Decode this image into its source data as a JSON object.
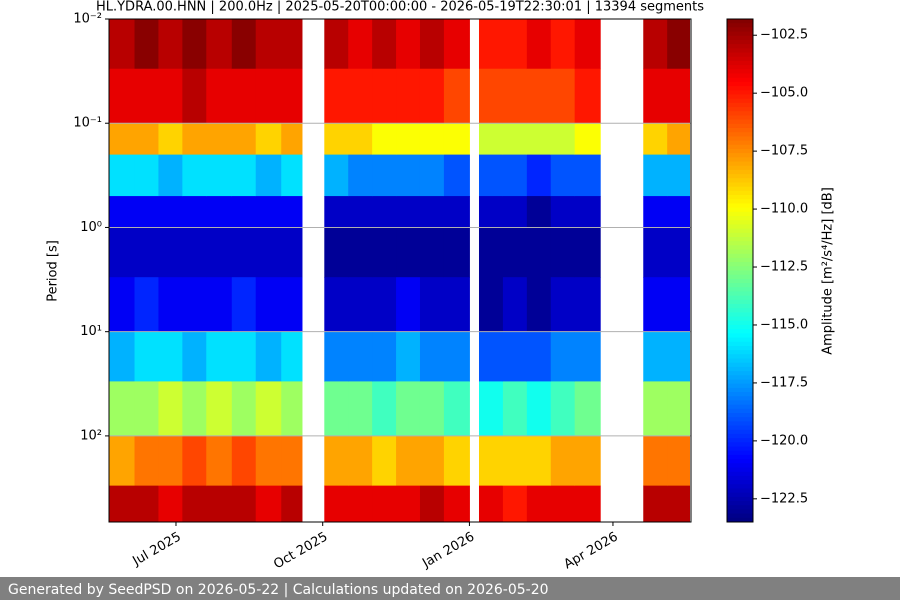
{
  "chart_data": {
    "type": "heatmap",
    "title": "HL.YDRA.00.HNN | 200.0Hz | 2025-05-20T00:00:00 - 2026-05-19T22:30:01 | 13394 segments",
    "y_label": "Period [s]",
    "colorbar_label": "Amplitude [m²/s⁴/Hz] [dB]",
    "footer": "Generated by SeedPSD on 2026-05-22 | Calculations updated on 2026-05-20",
    "colormap": "jet",
    "log_y": true,
    "y_inverted": true,
    "grid": true,
    "grid_color": "#b0b0b0",
    "x_bins": [
      "2025-05-20",
      "2025-06-05",
      "2025-06-20",
      "2025-07-05",
      "2025-07-20",
      "2025-08-05",
      "2025-08-20",
      "2025-09-05",
      "2025-09-18",
      "2025-10-02",
      "2025-10-17",
      "2025-11-01",
      "2025-11-16",
      "2025-12-01",
      "2025-12-16",
      "2026-01-01",
      "2026-01-07",
      "2026-01-22",
      "2026-02-06",
      "2026-02-21",
      "2026-03-08",
      "2026-03-24",
      "2026-04-20",
      "2026-05-05",
      "2026-05-19"
    ],
    "y_bins": [
      0.01,
      0.03,
      0.1,
      0.2,
      0.5,
      1,
      3,
      10,
      30,
      100,
      300,
      670
    ],
    "values": [
      [
        -103,
        -104,
        -108,
        -116,
        -121,
        -122,
        -121,
        -117,
        -112,
        -108,
        -103
      ],
      [
        -102,
        -104,
        -108,
        -116,
        -121,
        -122,
        -120,
        -116,
        -112,
        -107,
        -103
      ],
      [
        -103,
        -104,
        -109,
        -117,
        -121,
        -122,
        -121,
        -116,
        -111,
        -107,
        -104
      ],
      [
        -102,
        -103,
        -108,
        -116,
        -121,
        -122,
        -121,
        -117,
        -112,
        -106,
        -103
      ],
      [
        -103,
        -104,
        -108,
        -116,
        -121,
        -122,
        -121,
        -116,
        -111,
        -107,
        -103
      ],
      [
        -102,
        -104,
        -108,
        -116,
        -121,
        -122,
        -120,
        -116,
        -112,
        -106,
        -103
      ],
      [
        -103,
        -104,
        -109,
        -117,
        -121,
        -122,
        -121,
        -117,
        -111,
        -107,
        -104
      ],
      [
        -103,
        -104,
        -108,
        -116,
        -121,
        -122,
        -121,
        -116,
        -112,
        -107,
        -103
      ],
      null,
      [
        -103,
        -105,
        -109,
        -117,
        -122,
        -123,
        -122,
        -118,
        -113,
        -108,
        -104
      ],
      [
        -104,
        -105,
        -109,
        -118,
        -122,
        -123,
        -122,
        -118,
        -113,
        -108,
        -104
      ],
      [
        -103,
        -105,
        -110,
        -118,
        -122,
        -123,
        -122,
        -118,
        -114,
        -109,
        -104
      ],
      [
        -104,
        -105,
        -110,
        -118,
        -122,
        -123,
        -121,
        -117,
        -113,
        -108,
        -104
      ],
      [
        -103,
        -105,
        -110,
        -118,
        -122,
        -123,
        -122,
        -118,
        -113,
        -108,
        -103
      ],
      [
        -104,
        -106,
        -110,
        -119,
        -122,
        -123,
        -122,
        -118,
        -114,
        -109,
        -104
      ],
      null,
      [
        -105,
        -106,
        -111,
        -119,
        -122,
        -123,
        -123,
        -119,
        -115,
        -109,
        -104
      ],
      [
        -105,
        -106,
        -111,
        -119,
        -122,
        -123,
        -122,
        -119,
        -114,
        -109,
        -105
      ],
      [
        -104,
        -106,
        -111,
        -120,
        -123,
        -123,
        -123,
        -119,
        -115,
        -109,
        -104
      ],
      [
        -105,
        -106,
        -111,
        -119,
        -122,
        -123,
        -122,
        -118,
        -114,
        -108,
        -104
      ],
      [
        -104,
        -105,
        -110,
        -119,
        -122,
        -123,
        -122,
        -118,
        -113,
        -108,
        -104
      ],
      null,
      [
        -103,
        -104,
        -109,
        -117,
        -121,
        -122,
        -121,
        -117,
        -112,
        -107,
        -103
      ],
      [
        -102,
        -104,
        -108,
        -117,
        -121,
        -122,
        -121,
        -117,
        -112,
        -107,
        -103
      ]
    ],
    "xlim": [
      "2025-05-20",
      "2026-05-19T22:30:01"
    ],
    "xticks": [
      {
        "value": "2025-07-01",
        "label": "Jul 2025"
      },
      {
        "value": "2025-10-01",
        "label": "Oct 2025"
      },
      {
        "value": "2026-01-01",
        "label": "Jan 2026"
      },
      {
        "value": "2026-04-01",
        "label": "Apr 2026"
      }
    ],
    "ylim": [
      0.01,
      670
    ],
    "yticks": [
      {
        "value": 0.01,
        "label": "10⁻²"
      },
      {
        "value": 0.1,
        "label": "10⁻¹"
      },
      {
        "value": 1,
        "label": "10⁰"
      },
      {
        "value": 10,
        "label": "10¹"
      },
      {
        "value": 100,
        "label": "10²"
      }
    ],
    "clim": [
      -123.5,
      -101.8
    ],
    "cticks": [
      {
        "value": -122.5,
        "label": "−122.5"
      },
      {
        "value": -120,
        "label": "−120.0"
      },
      {
        "value": -117.5,
        "label": "−117.5"
      },
      {
        "value": -115,
        "label": "−115.0"
      },
      {
        "value": -112.5,
        "label": "−112.5"
      },
      {
        "value": -110,
        "label": "−110.0"
      },
      {
        "value": -107.5,
        "label": "−107.5"
      },
      {
        "value": -105,
        "label": "−105.0"
      },
      {
        "value": -102.5,
        "label": "−102.5"
      }
    ]
  }
}
